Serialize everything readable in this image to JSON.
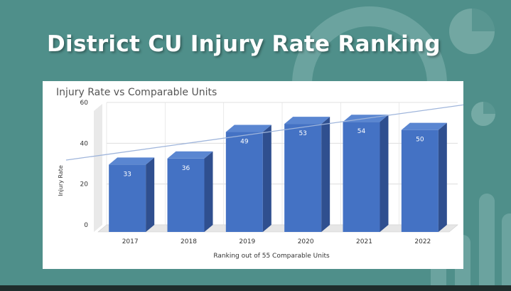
{
  "slide": {
    "title": "District CU Injury Rate Ranking"
  },
  "chart_data": {
    "type": "bar",
    "title": "Injury Rate vs Comparable Units",
    "xlabel": "Ranking out of 55 Comparable Units",
    "ylabel": "Injury Rate",
    "categories": [
      "2017",
      "2018",
      "2019",
      "2020",
      "2021",
      "2022"
    ],
    "series": [
      {
        "values": [
          33,
          36,
          49,
          53,
          54,
          50
        ]
      }
    ],
    "ylim": [
      0,
      60
    ],
    "yticks": [
      0,
      20,
      40,
      60
    ],
    "trendline": true,
    "grid": true,
    "bar_color": "#4472c4"
  }
}
